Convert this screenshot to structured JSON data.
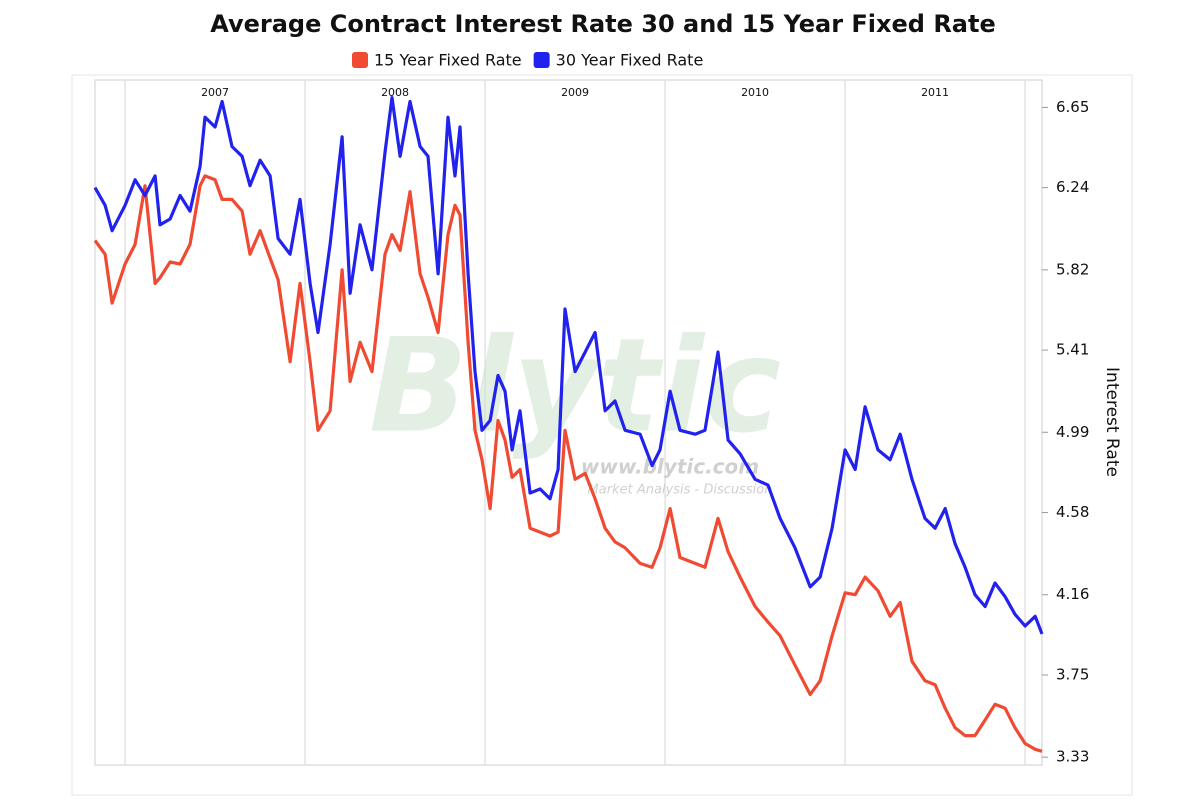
{
  "chart_data": {
    "type": "line",
    "title": "Average Contract Interest Rate 30 and 15 Year Fixed Rate",
    "y_axis_label": "Interest Rate",
    "watermark": [
      "Blytic",
      "www.blytic.com",
      "Market Analysis - Discussion"
    ],
    "legend": "top",
    "x": [
      2006.833,
      2006.889,
      2006.928,
      2007.0,
      2007.056,
      2007.111,
      2007.167,
      2007.194,
      2007.25,
      2007.306,
      2007.361,
      2007.417,
      2007.444,
      2007.5,
      2007.539,
      2007.594,
      2007.65,
      2007.694,
      2007.75,
      2007.806,
      2007.85,
      2007.917,
      2007.972,
      2008.028,
      2008.072,
      2008.139,
      2008.206,
      2008.25,
      2008.306,
      2008.372,
      2008.444,
      2008.483,
      2008.528,
      2008.583,
      2008.639,
      2008.683,
      2008.739,
      2008.794,
      2008.833,
      2008.861,
      2008.906,
      2008.944,
      2008.983,
      2009.028,
      2009.072,
      2009.111,
      2009.15,
      2009.194,
      2009.25,
      2009.306,
      2009.361,
      2009.406,
      2009.444,
      2009.5,
      2009.556,
      2009.611,
      2009.667,
      2009.722,
      2009.778,
      2009.861,
      2009.928,
      2009.972,
      2010.028,
      2010.083,
      2010.167,
      2010.222,
      2010.294,
      2010.35,
      2010.417,
      2010.5,
      2010.572,
      2010.639,
      2010.722,
      2010.806,
      2010.861,
      2010.928,
      2011.0,
      2011.056,
      2011.111,
      2011.183,
      2011.25,
      2011.306,
      2011.372,
      2011.444,
      2011.5,
      2011.556,
      2011.611,
      2011.667,
      2011.722,
      2011.778,
      2011.833,
      2011.889,
      2011.944,
      2012.0,
      2012.056,
      2012.094
    ],
    "series": [
      {
        "name": "15 Year Fixed Rate",
        "color": "#f04a32",
        "values": [
          5.97,
          5.9,
          5.65,
          5.85,
          5.95,
          6.25,
          5.75,
          5.78,
          5.86,
          5.85,
          5.95,
          6.25,
          6.3,
          6.28,
          6.18,
          6.18,
          6.12,
          5.9,
          6.02,
          5.88,
          5.77,
          5.35,
          5.75,
          5.35,
          5.0,
          5.1,
          5.82,
          5.25,
          5.45,
          5.3,
          5.9,
          6.0,
          5.92,
          6.22,
          5.8,
          5.68,
          5.5,
          6.0,
          6.15,
          6.1,
          5.45,
          5.0,
          4.85,
          4.6,
          5.05,
          4.95,
          4.76,
          4.8,
          4.5,
          4.48,
          4.46,
          4.48,
          5.0,
          4.75,
          4.78,
          4.65,
          4.5,
          4.43,
          4.4,
          4.32,
          4.3,
          4.4,
          4.6,
          4.35,
          4.32,
          4.3,
          4.55,
          4.38,
          4.25,
          4.1,
          4.02,
          3.95,
          3.8,
          3.65,
          3.72,
          3.95,
          4.17,
          4.16,
          4.25,
          4.18,
          4.05,
          4.12,
          3.82,
          3.72,
          3.7,
          3.58,
          3.48,
          3.44,
          3.44,
          3.52,
          3.6,
          3.58,
          3.48,
          3.4,
          3.37,
          3.36
        ]
      },
      {
        "name": "30 Year Fixed Rate",
        "color": "#2222ee",
        "values": [
          6.24,
          6.15,
          6.02,
          6.15,
          6.28,
          6.2,
          6.3,
          6.05,
          6.08,
          6.2,
          6.12,
          6.35,
          6.6,
          6.55,
          6.68,
          6.45,
          6.4,
          6.25,
          6.38,
          6.3,
          5.98,
          5.9,
          6.18,
          5.75,
          5.5,
          5.95,
          6.5,
          5.7,
          6.05,
          5.82,
          6.42,
          6.7,
          6.4,
          6.68,
          6.45,
          6.4,
          5.8,
          6.6,
          6.3,
          6.55,
          5.8,
          5.3,
          5.0,
          5.05,
          5.28,
          5.2,
          4.9,
          5.1,
          4.68,
          4.7,
          4.65,
          4.8,
          5.62,
          5.3,
          5.4,
          5.5,
          5.1,
          5.15,
          5.0,
          4.98,
          4.82,
          4.9,
          5.2,
          5.0,
          4.98,
          5.0,
          5.4,
          4.95,
          4.88,
          4.75,
          4.72,
          4.55,
          4.4,
          4.2,
          4.25,
          4.5,
          4.9,
          4.8,
          5.12,
          4.9,
          4.85,
          4.98,
          4.75,
          4.55,
          4.5,
          4.6,
          4.42,
          4.3,
          4.16,
          4.1,
          4.22,
          4.15,
          4.06,
          4.0,
          4.05,
          3.96
        ]
      }
    ],
    "xlim": [
      2006.833,
      2012.094
    ],
    "xticks": [
      {
        "value": 2007.5,
        "label": "2007"
      },
      {
        "value": 2008.5,
        "label": "2008"
      },
      {
        "value": 2009.5,
        "label": "2009"
      },
      {
        "value": 2010.5,
        "label": "2010"
      },
      {
        "value": 2011.5,
        "label": "2011"
      }
    ],
    "xgrid": [
      2007,
      2008,
      2009,
      2010,
      2011,
      2012
    ],
    "ylim": [
      3.29,
      6.79
    ],
    "yticks": [
      3.33,
      3.75,
      4.16,
      4.58,
      4.99,
      5.41,
      5.82,
      6.24,
      6.65
    ],
    "y_axis_side": "right",
    "grid": true
  }
}
